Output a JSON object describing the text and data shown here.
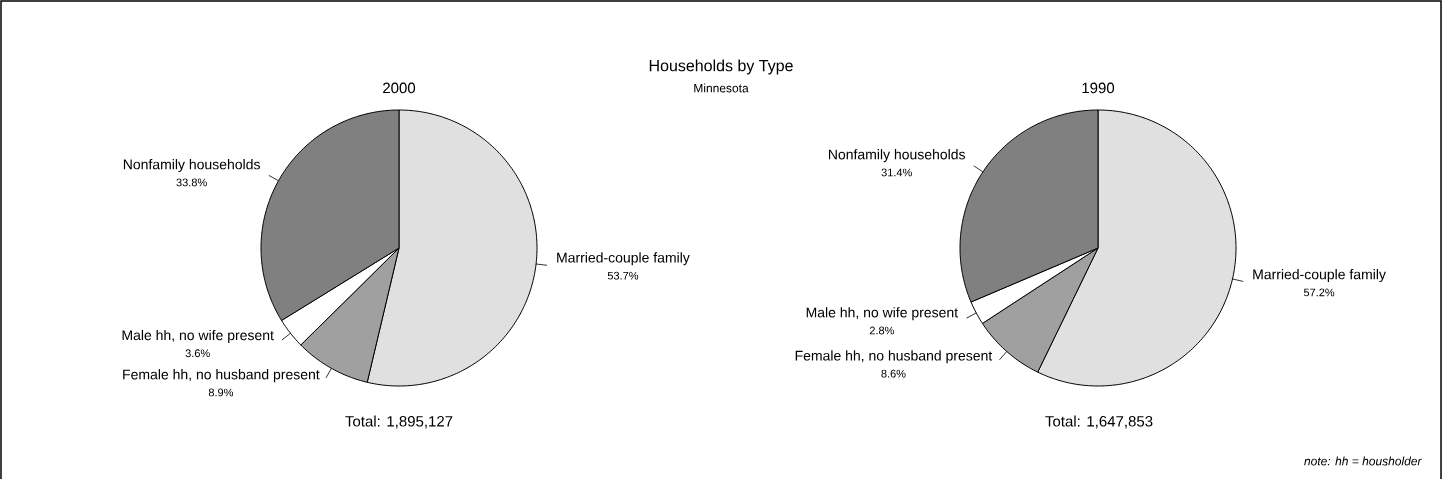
{
  "chart_data": [
    {
      "type": "pie",
      "title": "2000",
      "annotations": [
        "Households by Type",
        "Minnesota",
        "Total: 1,895,127"
      ],
      "categories": [
        "Married-couple family",
        "Female hh, no husband present",
        "Male hh, no wife present",
        "Nonfamily households"
      ],
      "values": [
        53.7,
        8.9,
        3.6,
        33.8
      ],
      "value_labels": [
        "53.7%",
        "8.9%",
        "3.6%",
        "33.8%"
      ],
      "colors": [
        "#e0e0e0",
        "#a0a0a0",
        "#ffffff",
        "#808080"
      ]
    },
    {
      "type": "pie",
      "title": "1990",
      "annotations": [
        "Total: 1,647,853",
        "note: hh = housholder"
      ],
      "categories": [
        "Married-couple family",
        "Female hh, no husband present",
        "Male hh, no wife present",
        "Nonfamily households"
      ],
      "values": [
        57.2,
        8.6,
        2.8,
        31.4
      ],
      "value_labels": [
        "57.2%",
        "8.6%",
        "2.8%",
        "31.4%"
      ],
      "colors": [
        "#e0e0e0",
        "#a0a0a0",
        "#ffffff",
        "#808080"
      ]
    }
  ]
}
